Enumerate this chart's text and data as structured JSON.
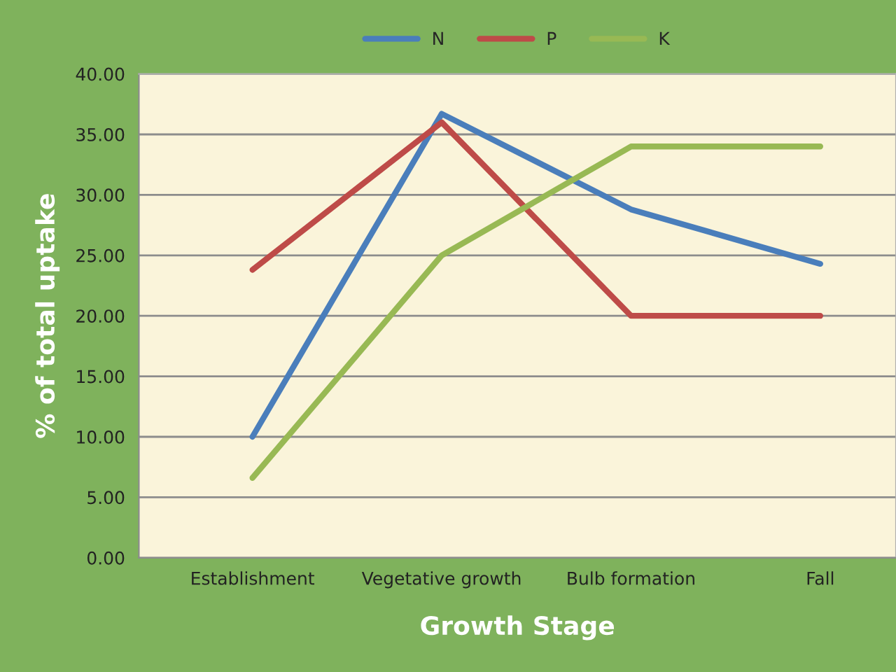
{
  "chart_data": {
    "type": "line",
    "xlabel": "Growth Stage",
    "ylabel": "% of total uptake",
    "categories": [
      "Establishment",
      "Vegetative growth",
      "Bulb formation",
      "Fall"
    ],
    "series": [
      {
        "name": "N",
        "color": "#4a7ebb",
        "values": [
          10.0,
          36.7,
          28.8,
          24.3
        ]
      },
      {
        "name": "P",
        "color": "#be4b48",
        "values": [
          23.8,
          36.0,
          20.0,
          20.0
        ]
      },
      {
        "name": "K",
        "color": "#98b954",
        "values": [
          6.6,
          25.0,
          34.0,
          34.0
        ]
      }
    ],
    "ylim": [
      0,
      40
    ],
    "yticks": [
      {
        "value": 0,
        "label": "0.00"
      },
      {
        "value": 5,
        "label": "5.00"
      },
      {
        "value": 10,
        "label": "10.00"
      },
      {
        "value": 15,
        "label": "15.00"
      },
      {
        "value": 20,
        "label": "20.00"
      },
      {
        "value": 25,
        "label": "25.00"
      },
      {
        "value": 30,
        "label": "30.00"
      },
      {
        "value": 35,
        "label": "35.00"
      },
      {
        "value": 40,
        "label": "40.00"
      }
    ],
    "grid": "y",
    "legend": "top",
    "marker": "none",
    "line_style": "solid"
  }
}
